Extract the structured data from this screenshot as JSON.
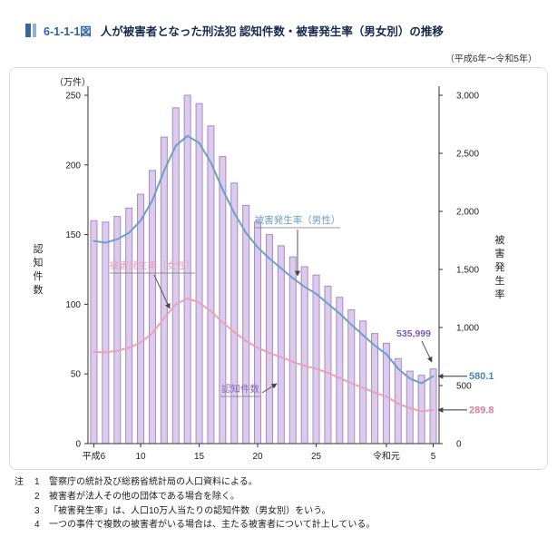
{
  "header": {
    "figure_number": "6-1-1-1図",
    "title": "人が被害者となった刑法犯 認知件数・被害発生率（男女別）の推移",
    "period": "（平成6年～令和5年）"
  },
  "chart_data": {
    "type": "bar+line",
    "years": [
      "平成6",
      "7",
      "8",
      "9",
      "10",
      "11",
      "12",
      "13",
      "14",
      "15",
      "16",
      "17",
      "18",
      "19",
      "20",
      "21",
      "22",
      "23",
      "24",
      "25",
      "26",
      "27",
      "28",
      "29",
      "30",
      "令和元",
      "2",
      "3",
      "4",
      "5"
    ],
    "x_ticks": [
      {
        "i": 0,
        "label": "平成6"
      },
      {
        "i": 4,
        "label": "10"
      },
      {
        "i": 9,
        "label": "15"
      },
      {
        "i": 14,
        "label": "20"
      },
      {
        "i": 19,
        "label": "25"
      },
      {
        "i": 25,
        "label": "令和元"
      },
      {
        "i": 29,
        "label": "5"
      }
    ],
    "left_axis": {
      "unit": "（万件）",
      "side_title": "認知件数",
      "min": 0,
      "max": 250,
      "ticks": [
        0,
        50,
        100,
        150,
        200,
        250
      ]
    },
    "right_axis": {
      "side_title": "被害発生率",
      "min": 0,
      "max": 3000,
      "ticks": [
        {
          "v": 0,
          "label": "0"
        },
        {
          "v": 500,
          "label": "500"
        },
        {
          "v": 1000,
          "label": "1,000"
        },
        {
          "v": 1500,
          "label": "1,500"
        },
        {
          "v": 2000,
          "label": "2,000"
        },
        {
          "v": 2500,
          "label": "2,500"
        },
        {
          "v": 3000,
          "label": "3,000"
        }
      ]
    },
    "bars": {
      "name": "認知件数",
      "unit": "万件",
      "fill": "#dccbeb",
      "stroke": "#a58bc8",
      "label_color": "#8a68b8",
      "value_color": "#7d5bb0",
      "values": [
        160,
        159,
        163,
        169,
        179,
        196,
        220,
        241,
        250,
        244,
        228,
        206,
        187,
        171,
        159,
        150,
        142,
        134,
        127,
        121,
        113,
        105,
        96,
        88,
        79,
        72,
        61,
        52,
        49,
        53.6
      ]
    },
    "series": [
      {
        "name": "被害発生率（男性）",
        "color": "#6f9fc8",
        "value_color": "#4d84b8",
        "values": [
          1745,
          1730,
          1760,
          1815,
          1920,
          2095,
          2350,
          2565,
          2650,
          2590,
          2420,
          2190,
          1985,
          1815,
          1690,
          1595,
          1510,
          1425,
          1350,
          1290,
          1205,
          1120,
          1025,
          935,
          845,
          770,
          645,
          560,
          520,
          580.1
        ]
      },
      {
        "name": "被害発生率（女性）",
        "color": "#e8a3b6",
        "value_color": "#d6809c",
        "values": [
          790,
          785,
          800,
          825,
          870,
          950,
          1080,
          1200,
          1250,
          1215,
          1140,
          1045,
          960,
          885,
          825,
          780,
          745,
          705,
          670,
          645,
          610,
          565,
          520,
          480,
          440,
          405,
          345,
          305,
          278,
          289.8
        ]
      }
    ],
    "annotations": {
      "male_label": "被害発生率（男性）",
      "female_label": "被害発生率（女性）",
      "bars_label": "認知件数",
      "last_bar_value": "535,999",
      "male_end_value": "580.1",
      "female_end_value": "289.8"
    }
  },
  "notes": {
    "label": "注",
    "items": [
      {
        "num": "1",
        "text": "警察庁の統計及び総務省統計局の人口資料による。"
      },
      {
        "num": "2",
        "text": "被害者が法人その他の団体である場合を除く。"
      },
      {
        "num": "3",
        "text": "「被害発生率」は、人口10万人当たりの認知件数（男女別）をいう。"
      },
      {
        "num": "4",
        "text": "一つの事件で複数の被害者がいる場合は、主たる被害者について計上している。"
      }
    ]
  }
}
